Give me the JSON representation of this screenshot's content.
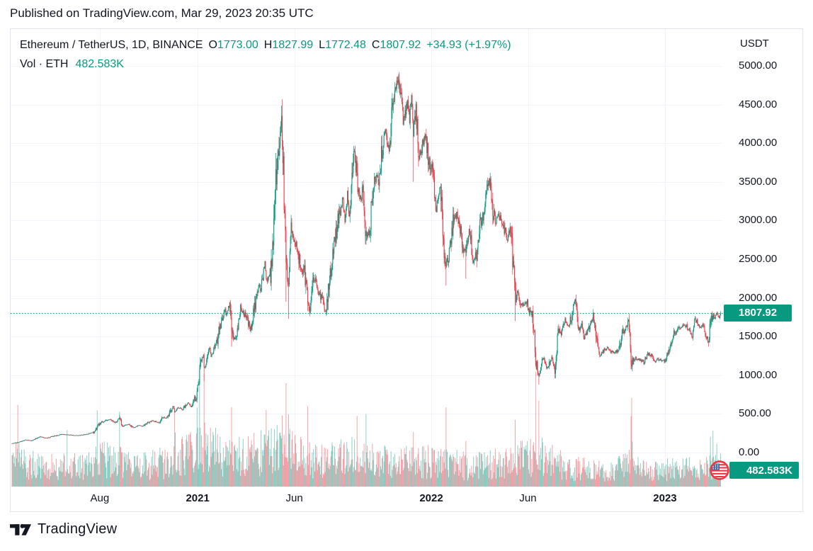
{
  "header": {
    "published_text": "Published on TradingView.com, Mar 29, 2023 20:35 UTC"
  },
  "legend": {
    "symbol": "Ethereum / TetherUS, 1D, BINANCE",
    "open_label": "O",
    "open": "1773.00",
    "high_label": "H",
    "high": "1827.99",
    "low_label": "L",
    "low": "1772.48",
    "close_label": "C",
    "close": "1807.92",
    "change": "+34.93 (+1.97%)",
    "vol_label": "Vol · ETH",
    "vol_value": "482.583K"
  },
  "footer": {
    "logo_text": "TradingView"
  },
  "colors": {
    "up": "#089981",
    "down": "#f23645",
    "vol_up": "rgba(8,153,129,0.5)",
    "vol_down": "rgba(242,54,69,0.5)",
    "grid": "#f0f3fa",
    "text": "#131722",
    "badge_bg": "#089981",
    "dotted_line": "#089981",
    "flag_ring": "#ef3340",
    "flag_blue": "#3c5fa3"
  },
  "chart_data": {
    "type": "candlestick",
    "title": "Ethereum / TetherUS, 1D, BINANCE",
    "interval": "1D",
    "y_axis": {
      "title": "USDT",
      "min": 0,
      "max": 5000,
      "step": 500
    },
    "x_axis": {
      "start": "2020-03-17",
      "end": "2023-03-29",
      "ticks": [
        {
          "label": "Aug",
          "date": "2020-08-01",
          "bold": false
        },
        {
          "label": "2021",
          "date": "2021-01-01",
          "bold": true
        },
        {
          "label": "Jun",
          "date": "2021-06-01",
          "bold": false
        },
        {
          "label": "2022",
          "date": "2022-01-01",
          "bold": true
        },
        {
          "label": "Jun",
          "date": "2022-06-01",
          "bold": false
        },
        {
          "label": "2023",
          "date": "2023-01-01",
          "bold": true
        }
      ]
    },
    "price_line": {
      "value": 1807.92,
      "label": "1807.92"
    },
    "volume_badge": {
      "label": "482.583K"
    },
    "last_ohlc": {
      "open": 1773.0,
      "high": 1827.99,
      "low": 1772.48,
      "close": 1807.92,
      "change": 34.93,
      "change_pct": 1.97
    },
    "price_anchors": [
      [
        "2020-03-17",
        118
      ],
      [
        "2020-03-26",
        132
      ],
      [
        "2020-04-07",
        165
      ],
      [
        "2020-04-16",
        153
      ],
      [
        "2020-04-30",
        206
      ],
      [
        "2020-05-10",
        187
      ],
      [
        "2020-05-20",
        210
      ],
      [
        "2020-06-02",
        238
      ],
      [
        "2020-06-15",
        228
      ],
      [
        "2020-06-27",
        221
      ],
      [
        "2020-07-13",
        240
      ],
      [
        "2020-07-23",
        264
      ],
      [
        "2020-07-28",
        318
      ],
      [
        "2020-08-02",
        387
      ],
      [
        "2020-08-13",
        424
      ],
      [
        "2020-08-17",
        433
      ],
      [
        "2020-08-25",
        383
      ],
      [
        "2020-09-01",
        460
      ],
      [
        "2020-09-05",
        335
      ],
      [
        "2020-09-15",
        365
      ],
      [
        "2020-09-23",
        321
      ],
      [
        "2020-10-01",
        353
      ],
      [
        "2020-10-07",
        340
      ],
      [
        "2020-10-14",
        378
      ],
      [
        "2020-10-22",
        414
      ],
      [
        "2020-11-01",
        385
      ],
      [
        "2020-11-07",
        455
      ],
      [
        "2020-11-15",
        448
      ],
      [
        "2020-11-21",
        550
      ],
      [
        "2020-11-24",
        605
      ],
      [
        "2020-11-26",
        520
      ],
      [
        "2020-12-01",
        587
      ],
      [
        "2020-12-08",
        555
      ],
      [
        "2020-12-17",
        640
      ],
      [
        "2020-12-23",
        585
      ],
      [
        "2020-12-27",
        685
      ],
      [
        "2020-12-31",
        738
      ],
      [
        "2021-01-04",
        1040
      ],
      [
        "2021-01-07",
        1210
      ],
      [
        "2021-01-10",
        1260
      ],
      [
        "2021-01-11",
        1090
      ],
      [
        "2021-01-15",
        1170
      ],
      [
        "2021-01-19",
        1370
      ],
      [
        "2021-01-22",
        1235
      ],
      [
        "2021-01-25",
        1320
      ],
      [
        "2021-01-29",
        1380
      ],
      [
        "2021-02-02",
        1510
      ],
      [
        "2021-02-06",
        1680
      ],
      [
        "2021-02-12",
        1840
      ],
      [
        "2021-02-16",
        1780
      ],
      [
        "2021-02-20",
        1935
      ],
      [
        "2021-02-23",
        1580
      ],
      [
        "2021-02-26",
        1460
      ],
      [
        "2021-03-02",
        1490
      ],
      [
        "2021-03-09",
        1870
      ],
      [
        "2021-03-15",
        1790
      ],
      [
        "2021-03-18",
        1780
      ],
      [
        "2021-03-24",
        1590
      ],
      [
        "2021-03-28",
        1690
      ],
      [
        "2021-03-31",
        1920
      ],
      [
        "2021-04-05",
        2110
      ],
      [
        "2021-04-10",
        2135
      ],
      [
        "2021-04-16",
        2455
      ],
      [
        "2021-04-18",
        2240
      ],
      [
        "2021-04-25",
        2305
      ],
      [
        "2021-04-29",
        2750
      ],
      [
        "2021-05-03",
        3440
      ],
      [
        "2021-05-08",
        3910
      ],
      [
        "2021-05-12",
        4360
      ],
      [
        "2021-05-15",
        3640
      ],
      [
        "2021-05-19",
        2440
      ],
      [
        "2021-05-23",
        2100
      ],
      [
        "2021-05-26",
        2890
      ],
      [
        "2021-05-31",
        2710
      ],
      [
        "2021-06-04",
        2720
      ],
      [
        "2021-06-08",
        2510
      ],
      [
        "2021-06-13",
        2370
      ],
      [
        "2021-06-17",
        2370
      ],
      [
        "2021-06-22",
        1880
      ],
      [
        "2021-06-26",
        1830
      ],
      [
        "2021-06-30",
        2270
      ],
      [
        "2021-07-05",
        2200
      ],
      [
        "2021-07-08",
        2115
      ],
      [
        "2021-07-14",
        1995
      ],
      [
        "2021-07-20",
        1790
      ],
      [
        "2021-07-25",
        2190
      ],
      [
        "2021-07-31",
        2530
      ],
      [
        "2021-08-04",
        2720
      ],
      [
        "2021-08-08",
        3010
      ],
      [
        "2021-08-12",
        3050
      ],
      [
        "2021-08-15",
        3310
      ],
      [
        "2021-08-19",
        3010
      ],
      [
        "2021-08-23",
        3320
      ],
      [
        "2021-08-26",
        3100
      ],
      [
        "2021-09-03",
        3940
      ],
      [
        "2021-09-08",
        3430
      ],
      [
        "2021-09-13",
        3290
      ],
      [
        "2021-09-17",
        3400
      ],
      [
        "2021-09-21",
        2760
      ],
      [
        "2021-09-27",
        2930
      ],
      [
        "2021-10-01",
        3310
      ],
      [
        "2021-10-06",
        3570
      ],
      [
        "2021-10-12",
        3490
      ],
      [
        "2021-10-15",
        3870
      ],
      [
        "2021-10-21",
        4170
      ],
      [
        "2021-10-27",
        3930
      ],
      [
        "2021-10-31",
        4290
      ],
      [
        "2021-11-03",
        4600
      ],
      [
        "2021-11-08",
        4810
      ],
      [
        "2021-11-14",
        4640
      ],
      [
        "2021-11-18",
        4290
      ],
      [
        "2021-11-21",
        4410
      ],
      [
        "2021-11-25",
        4520
      ],
      [
        "2021-11-28",
        4300
      ],
      [
        "2021-12-01",
        4630
      ],
      [
        "2021-12-04",
        4110
      ],
      [
        "2021-12-08",
        4440
      ],
      [
        "2021-12-13",
        3780
      ],
      [
        "2021-12-17",
        3960
      ],
      [
        "2021-12-23",
        4100
      ],
      [
        "2021-12-28",
        3790
      ],
      [
        "2021-12-31",
        3680
      ],
      [
        "2022-01-05",
        3550
      ],
      [
        "2022-01-08",
        3090
      ],
      [
        "2022-01-12",
        3370
      ],
      [
        "2022-01-16",
        3330
      ],
      [
        "2022-01-21",
        2560
      ],
      [
        "2022-01-24",
        2440
      ],
      [
        "2022-01-28",
        2550
      ],
      [
        "2022-02-01",
        2690
      ],
      [
        "2022-02-04",
        3000
      ],
      [
        "2022-02-10",
        3070
      ],
      [
        "2022-02-14",
        2930
      ],
      [
        "2022-02-20",
        2630
      ],
      [
        "2022-02-24",
        2580
      ],
      [
        "2022-03-01",
        2920
      ],
      [
        "2022-03-07",
        2500
      ],
      [
        "2022-03-13",
        2570
      ],
      [
        "2022-03-18",
        2940
      ],
      [
        "2022-03-23",
        3030
      ],
      [
        "2022-03-29",
        3400
      ],
      [
        "2022-04-03",
        3520
      ],
      [
        "2022-04-06",
        3170
      ],
      [
        "2022-04-11",
        2980
      ],
      [
        "2022-04-16",
        3060
      ],
      [
        "2022-04-21",
        3000
      ],
      [
        "2022-04-26",
        2870
      ],
      [
        "2022-04-30",
        2730
      ],
      [
        "2022-05-04",
        2940
      ],
      [
        "2022-05-08",
        2520
      ],
      [
        "2022-05-12",
        2010
      ],
      [
        "2022-05-16",
        2060
      ],
      [
        "2022-05-20",
        1960
      ],
      [
        "2022-05-25",
        1910
      ],
      [
        "2022-05-31",
        1940
      ],
      [
        "2022-06-03",
        1770
      ],
      [
        "2022-06-06",
        1860
      ],
      [
        "2022-06-10",
        1660
      ],
      [
        "2022-06-13",
        1200
      ],
      [
        "2022-06-18",
        995
      ],
      [
        "2022-06-21",
        1130
      ],
      [
        "2022-06-26",
        1230
      ],
      [
        "2022-06-30",
        1070
      ],
      [
        "2022-07-04",
        1140
      ],
      [
        "2022-07-08",
        1220
      ],
      [
        "2022-07-13",
        1040
      ],
      [
        "2022-07-18",
        1570
      ],
      [
        "2022-07-23",
        1540
      ],
      [
        "2022-07-29",
        1720
      ],
      [
        "2022-08-03",
        1630
      ],
      [
        "2022-08-08",
        1780
      ],
      [
        "2022-08-11",
        1900
      ],
      [
        "2022-08-14",
        1980
      ],
      [
        "2022-08-19",
        1620
      ],
      [
        "2022-08-23",
        1660
      ],
      [
        "2022-08-28",
        1490
      ],
      [
        "2022-09-01",
        1560
      ],
      [
        "2022-09-06",
        1620
      ],
      [
        "2022-09-11",
        1760
      ],
      [
        "2022-09-15",
        1470
      ],
      [
        "2022-09-21",
        1250
      ],
      [
        "2022-09-25",
        1310
      ],
      [
        "2022-09-30",
        1330
      ],
      [
        "2022-10-04",
        1360
      ],
      [
        "2022-10-08",
        1320
      ],
      [
        "2022-10-13",
        1290
      ],
      [
        "2022-10-18",
        1310
      ],
      [
        "2022-10-22",
        1320
      ],
      [
        "2022-10-26",
        1560
      ],
      [
        "2022-10-31",
        1590
      ],
      [
        "2022-11-04",
        1650
      ],
      [
        "2022-11-07",
        1570
      ],
      [
        "2022-11-09",
        1100
      ],
      [
        "2022-11-14",
        1220
      ],
      [
        "2022-11-19",
        1210
      ],
      [
        "2022-11-24",
        1200
      ],
      [
        "2022-11-29",
        1170
      ],
      [
        "2022-12-05",
        1280
      ],
      [
        "2022-12-10",
        1260
      ],
      [
        "2022-12-16",
        1170
      ],
      [
        "2022-12-21",
        1210
      ],
      [
        "2022-12-26",
        1190
      ],
      [
        "2022-12-31",
        1195
      ],
      [
        "2023-01-04",
        1250
      ],
      [
        "2023-01-08",
        1290
      ],
      [
        "2023-01-14",
        1550
      ],
      [
        "2023-01-18",
        1510
      ],
      [
        "2023-01-21",
        1630
      ],
      [
        "2023-01-25",
        1610
      ],
      [
        "2023-01-29",
        1640
      ],
      [
        "2023-02-02",
        1640
      ],
      [
        "2023-02-06",
        1620
      ],
      [
        "2023-02-09",
        1540
      ],
      [
        "2023-02-13",
        1500
      ],
      [
        "2023-02-16",
        1680
      ],
      [
        "2023-02-20",
        1690
      ],
      [
        "2023-02-24",
        1600
      ],
      [
        "2023-03-01",
        1650
      ],
      [
        "2023-03-05",
        1560
      ],
      [
        "2023-03-10",
        1430
      ],
      [
        "2023-03-12",
        1590
      ],
      [
        "2023-03-14",
        1700
      ],
      [
        "2023-03-17",
        1790
      ],
      [
        "2023-03-20",
        1740
      ],
      [
        "2023-03-22",
        1800
      ],
      [
        "2023-03-25",
        1750
      ],
      [
        "2023-03-27",
        1720
      ],
      [
        "2023-03-29",
        1807.92
      ]
    ],
    "wick_extremes": [
      [
        "2020-09-01",
        "high",
        488
      ],
      [
        "2021-01-11",
        "low",
        920
      ],
      [
        "2021-02-23",
        "low",
        1370
      ],
      [
        "2021-05-12",
        "high",
        4372
      ],
      [
        "2021-05-19",
        "low",
        1950
      ],
      [
        "2021-05-23",
        "low",
        1730
      ],
      [
        "2021-11-10",
        "high",
        4868
      ],
      [
        "2021-12-04",
        "low",
        3500
      ],
      [
        "2022-01-24",
        "low",
        2160
      ],
      [
        "2022-02-24",
        "low",
        2250
      ],
      [
        "2022-05-12",
        "low",
        1700
      ],
      [
        "2022-06-18",
        "low",
        880
      ],
      [
        "2022-11-09",
        "low",
        1075
      ],
      [
        "2023-03-10",
        "low",
        1370
      ]
    ],
    "volume_base": [
      [
        "2020-03-17",
        0.26
      ],
      [
        "2020-05-01",
        0.18
      ],
      [
        "2020-07-20",
        0.2
      ],
      [
        "2020-08-01",
        0.27
      ],
      [
        "2020-10-01",
        0.18
      ],
      [
        "2020-11-20",
        0.24
      ],
      [
        "2021-01-01",
        0.34
      ],
      [
        "2021-03-01",
        0.27
      ],
      [
        "2021-05-15",
        0.36
      ],
      [
        "2021-07-01",
        0.24
      ],
      [
        "2021-09-07",
        0.28
      ],
      [
        "2021-11-01",
        0.22
      ],
      [
        "2022-01-22",
        0.24
      ],
      [
        "2022-03-01",
        0.18
      ],
      [
        "2022-05-10",
        0.24
      ],
      [
        "2022-06-15",
        0.3
      ],
      [
        "2022-08-01",
        0.18
      ],
      [
        "2022-10-01",
        0.14
      ],
      [
        "2022-11-09",
        0.22
      ],
      [
        "2022-12-01",
        0.14
      ],
      [
        "2023-01-14",
        0.17
      ],
      [
        "2023-03-01",
        0.16
      ],
      [
        "2023-03-29",
        0.2
      ]
    ],
    "volume_spikes": [
      [
        "2020-03-26",
        0.55
      ],
      [
        "2020-06-11",
        0.3
      ],
      [
        "2020-07-28",
        0.4
      ],
      [
        "2020-09-01",
        0.5
      ],
      [
        "2020-11-26",
        0.35
      ],
      [
        "2020-12-31",
        0.3
      ],
      [
        "2021-01-04",
        0.6
      ],
      [
        "2021-01-11",
        0.8
      ],
      [
        "2021-01-21",
        0.5
      ],
      [
        "2021-01-29",
        0.38
      ],
      [
        "2021-02-23",
        0.66
      ],
      [
        "2021-04-18",
        0.45
      ],
      [
        "2021-05-13",
        0.5
      ],
      [
        "2021-05-19",
        1.0
      ],
      [
        "2021-05-23",
        0.45
      ],
      [
        "2021-06-22",
        0.35
      ],
      [
        "2021-09-07",
        0.58
      ],
      [
        "2021-09-21",
        0.3
      ],
      [
        "2021-12-04",
        0.42
      ],
      [
        "2022-01-24",
        0.38
      ],
      [
        "2022-02-24",
        0.3
      ],
      [
        "2022-05-12",
        0.42
      ],
      [
        "2022-06-13",
        0.92
      ],
      [
        "2022-06-18",
        0.5
      ],
      [
        "2022-11-09",
        0.6
      ],
      [
        "2022-11-10",
        0.42
      ],
      [
        "2023-03-13",
        0.35
      ],
      [
        "2023-03-17",
        0.3
      ],
      [
        "2023-03-23",
        0.25
      ]
    ]
  }
}
